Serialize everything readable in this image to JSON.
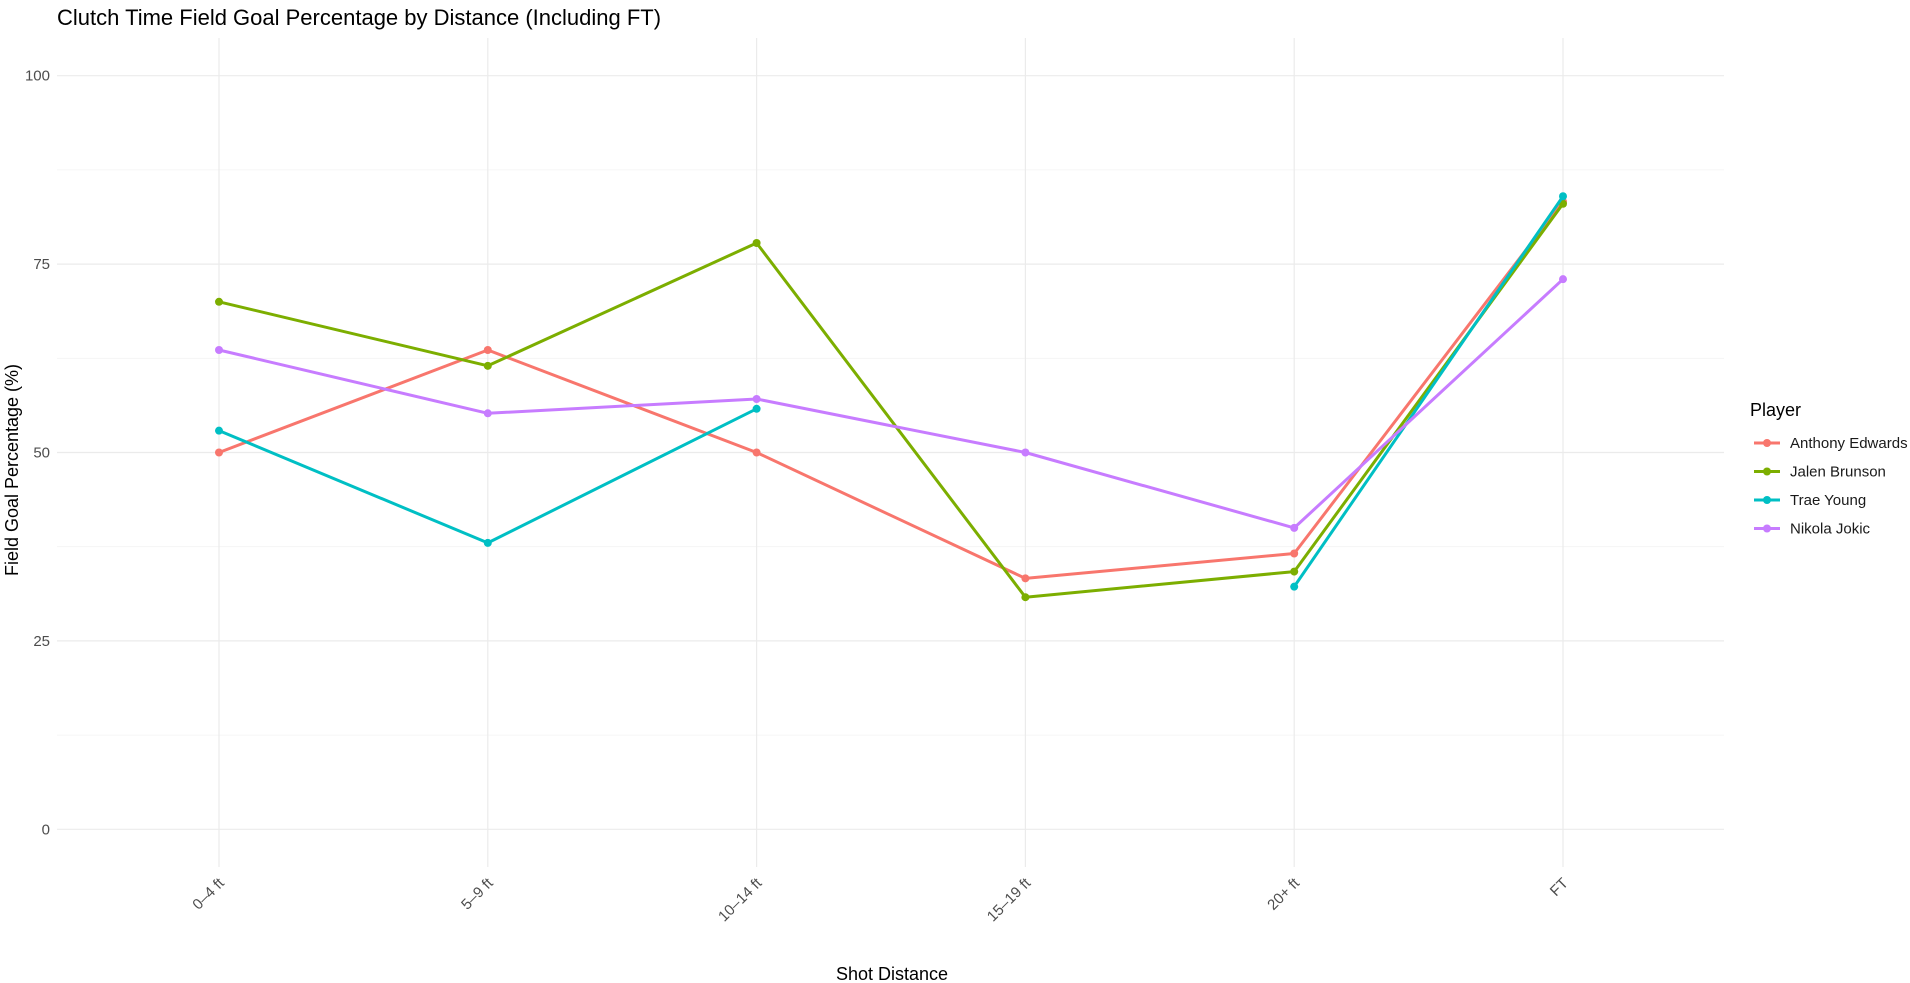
{
  "chart_data": {
    "type": "line",
    "title": "Clutch Time Field Goal Percentage by Distance (Including FT)",
    "xlabel": "Shot Distance",
    "ylabel": "Field Goal Percentage (%)",
    "categories": [
      "0–4 ft",
      "5–9 ft",
      "10–14 ft",
      "15–19 ft",
      "20+ ft",
      "FT"
    ],
    "ylim": [
      0,
      100
    ],
    "yticks": [
      0,
      25,
      50,
      75,
      100
    ],
    "grid": true,
    "legend": {
      "title": "Player",
      "position": "right"
    },
    "series": [
      {
        "name": "Anthony Edwards",
        "color": "#F8766D",
        "values": [
          50.0,
          63.6,
          50.0,
          33.3,
          36.6,
          83.3
        ]
      },
      {
        "name": "Jalen Brunson",
        "color": "#7CAE00",
        "values": [
          70.0,
          61.5,
          77.8,
          30.8,
          34.2,
          83.0
        ]
      },
      {
        "name": "Trae Young",
        "color": "#00BFC4",
        "values": [
          52.9,
          38.0,
          55.8,
          null,
          32.2,
          84.0
        ]
      },
      {
        "name": "Nikola Jokic",
        "color": "#C77CFF",
        "values": [
          63.6,
          55.2,
          57.1,
          50.0,
          40.0,
          73.0
        ]
      }
    ]
  }
}
